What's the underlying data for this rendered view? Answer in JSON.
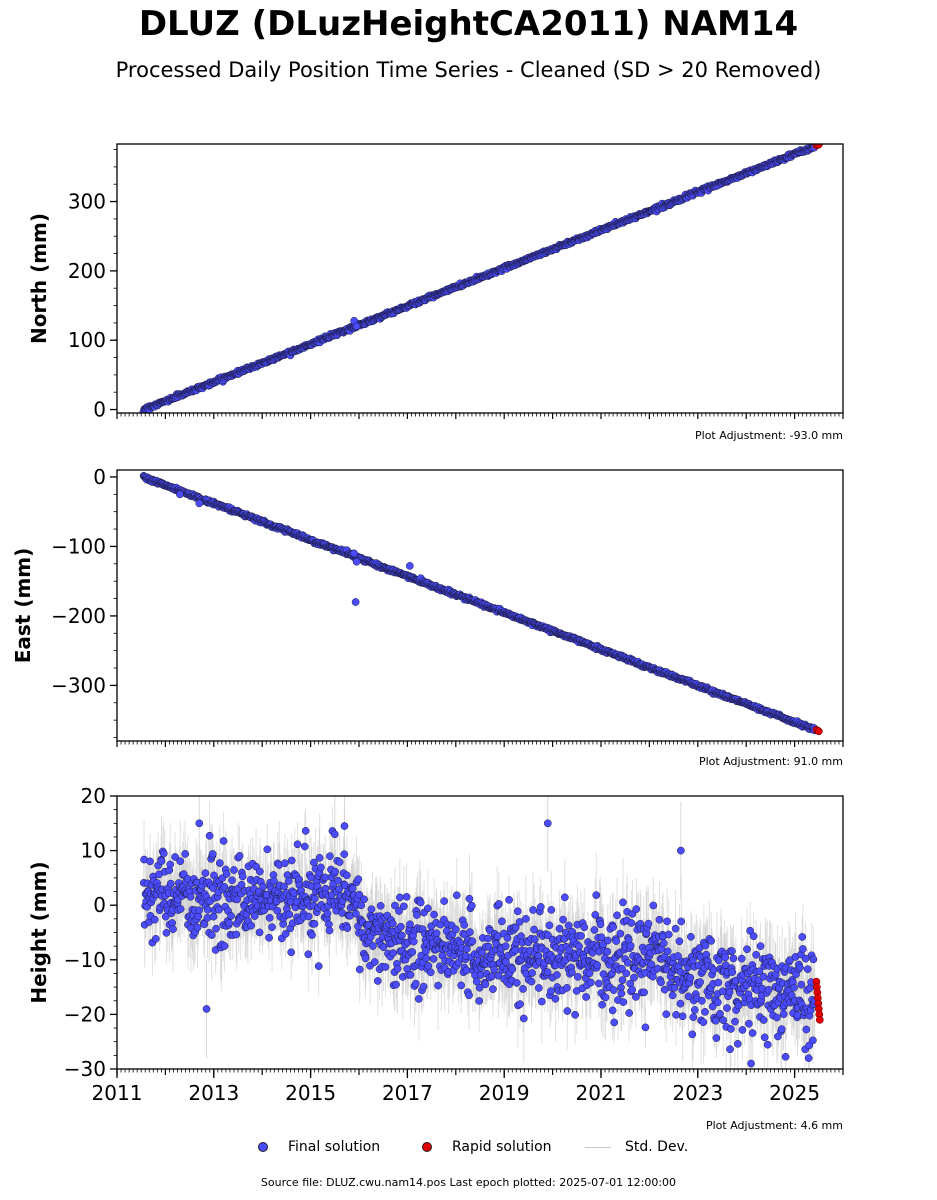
{
  "title": "DLUZ (DLuzHeightCA2011) NAM14",
  "subtitle": "Processed Daily Position Time Series - Cleaned (SD > 20 Removed)",
  "footer": "Source file: DLUZ.cwu.nam14.pos  Last epoch plotted: 2025-07-01 12:00:00",
  "legend": {
    "final": "Final solution",
    "rapid": "Rapid solution",
    "std": "Std. Dev."
  },
  "colors": {
    "final": "#4b4bff",
    "rapid": "#e00000",
    "std": "#c8c8c8",
    "edge": "#1a1a3a"
  },
  "chart_data": [
    {
      "type": "scatter",
      "ylabel": "North (mm)",
      "adjustment": "Plot Adjustment: -93.0 mm",
      "xlim": [
        2011,
        2026
      ],
      "ylim": [
        -5,
        383
      ],
      "yticks": [
        0,
        100,
        200,
        300
      ],
      "ytick_labels": [
        "0",
        "100",
        "200",
        "300"
      ],
      "xticks": [],
      "x_start": 2011.55,
      "x_end": 2025.5,
      "y_start": 0,
      "y_end": 382,
      "noise": 2,
      "outliers": [
        [
          2015.9,
          128
        ],
        [
          2015.95,
          120
        ]
      ],
      "rapid_points": [
        [
          2025.45,
          381
        ],
        [
          2025.48,
          382
        ],
        [
          2025.5,
          382
        ]
      ]
    },
    {
      "type": "scatter",
      "ylabel": "East (mm)",
      "adjustment": "Plot Adjustment: 91.0 mm",
      "xlim": [
        2011,
        2026
      ],
      "ylim": [
        -380,
        10
      ],
      "yticks": [
        0,
        -100,
        -200,
        -300
      ],
      "ytick_labels": [
        "0",
        "−100",
        "−200",
        "−300"
      ],
      "xticks": [],
      "x_start": 2011.55,
      "x_end": 2025.5,
      "y_start": 0,
      "y_end": -366,
      "noise": 2,
      "outliers": [
        [
          2015.93,
          -180
        ],
        [
          2017.05,
          -128
        ],
        [
          2015.9,
          -110
        ],
        [
          2015.95,
          -122
        ],
        [
          2012.7,
          -38
        ],
        [
          2012.3,
          -25
        ]
      ],
      "rapid_points": [
        [
          2025.45,
          -364
        ],
        [
          2025.48,
          -365
        ],
        [
          2025.5,
          -366
        ]
      ]
    },
    {
      "type": "scatter",
      "ylabel": "Height (mm)",
      "adjustment": "Plot Adjustment: 4.6 mm",
      "xlim": [
        2011,
        2026
      ],
      "ylim": [
        -30,
        20
      ],
      "yticks": [
        20,
        10,
        0,
        -10,
        -20,
        -30
      ],
      "ytick_labels": [
        "20",
        "10",
        "0",
        "−10",
        "−20",
        "−30"
      ],
      "xticks": [
        2011,
        2013,
        2015,
        2017,
        2019,
        2021,
        2023,
        2025
      ],
      "xtick_labels": [
        "2011",
        "2013",
        "2015",
        "2017",
        "2019",
        "2021",
        "2023",
        "2025"
      ],
      "trend_knots": [
        [
          2011.55,
          2
        ],
        [
          2013,
          1
        ],
        [
          2015,
          1
        ],
        [
          2015.95,
          2
        ],
        [
          2016.1,
          -5
        ],
        [
          2017.5,
          -8
        ],
        [
          2020,
          -10
        ],
        [
          2022.3,
          -9
        ],
        [
          2023,
          -14
        ],
        [
          2025.5,
          -16
        ]
      ],
      "noise": 4,
      "outliers": [
        [
          2019.9,
          15
        ],
        [
          2012.85,
          -19
        ],
        [
          2024.1,
          -29
        ],
        [
          2022.65,
          10
        ],
        [
          2012.7,
          15
        ],
        [
          2015.7,
          14.5
        ],
        [
          2015.5,
          13
        ]
      ],
      "rapid_points": [
        [
          2025.45,
          -14
        ],
        [
          2025.46,
          -15
        ],
        [
          2025.47,
          -16
        ],
        [
          2025.48,
          -17
        ],
        [
          2025.49,
          -18
        ],
        [
          2025.5,
          -19
        ],
        [
          2025.51,
          -20
        ],
        [
          2025.52,
          -21
        ]
      ]
    }
  ]
}
